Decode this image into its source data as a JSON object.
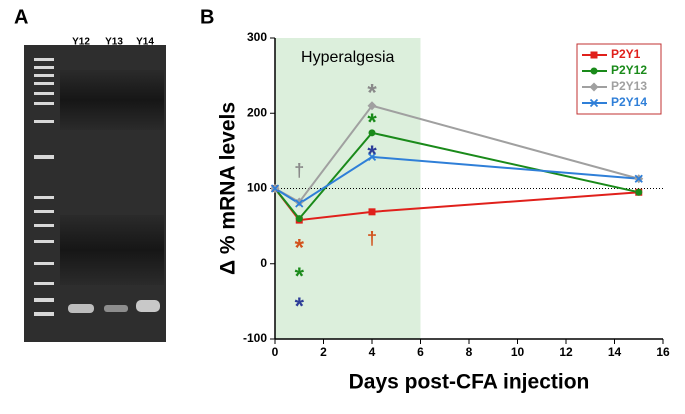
{
  "panel_labels": [
    "A",
    "B"
  ],
  "gel": {
    "lane_labels": [
      "Y12",
      "Y13",
      "Y14"
    ]
  },
  "chart_data": {
    "type": "line",
    "x": [
      0,
      1,
      4,
      15
    ],
    "series": [
      {
        "name": "P2Y1",
        "color": "#e0201b",
        "marker": "square",
        "values": [
          100,
          58,
          69,
          95
        ]
      },
      {
        "name": "P2Y12",
        "color": "#1a8a1a",
        "marker": "circle",
        "values": [
          100,
          60,
          174,
          95
        ]
      },
      {
        "name": "P2Y13",
        "color": "#a0a0a0",
        "marker": "diamond",
        "values": [
          100,
          82,
          210,
          113
        ]
      },
      {
        "name": "P2Y14",
        "color": "#2f7fd8",
        "marker": "cross",
        "values": [
          100,
          80,
          142,
          113
        ]
      }
    ],
    "xlabel": "Days post-CFA injection",
    "ylabel": "Δ % mRNA levels",
    "xlim": [
      0,
      16
    ],
    "xticks": [
      0,
      2,
      4,
      6,
      8,
      10,
      12,
      14,
      16
    ],
    "ylim": [
      -100,
      300
    ],
    "yticks": [
      -100,
      0,
      100,
      200,
      300
    ],
    "shade": {
      "x": [
        0,
        6
      ],
      "label": "Hyperalgesia",
      "color": "#dcefdc"
    },
    "reference_line": 100,
    "legend": "upper right",
    "annotations": [
      {
        "text": "†",
        "x": 1,
        "y": 122,
        "color": "#8a8a8a"
      },
      {
        "text": "*",
        "x": 1,
        "y": 26,
        "color": "#d2521c"
      },
      {
        "text": "*",
        "x": 1,
        "y": -12,
        "color": "#1a8a1a"
      },
      {
        "text": "*",
        "x": 1,
        "y": -52,
        "color": "#2d3d98"
      },
      {
        "text": "*",
        "x": 4,
        "y": 232,
        "color": "#8a8a8a"
      },
      {
        "text": "*",
        "x": 4,
        "y": 193,
        "color": "#1a8a1a"
      },
      {
        "text": "*",
        "x": 4,
        "y": 150,
        "color": "#2d3d98"
      },
      {
        "text": "†",
        "x": 4,
        "y": 32,
        "color": "#d2521c"
      }
    ]
  }
}
